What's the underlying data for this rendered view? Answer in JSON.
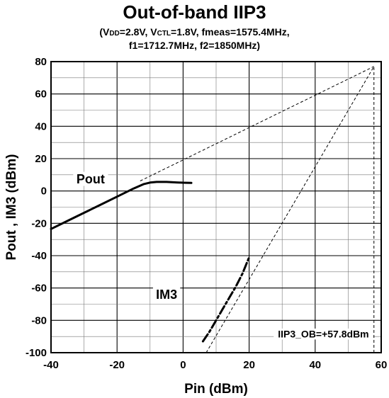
{
  "chart_data": {
    "type": "line",
    "title": "Out-of-band IIP3",
    "subtitle": {
      "line1_a": "(V",
      "line1_vdd_sub": "DD",
      "line1_b": "=2.8V, V",
      "line1_vctl_sub": "CTL",
      "line1_c": "=1.8V, fmeas=1575.4MHz,",
      "line2": "f1=1712.7MHz, f2=1850MHz)"
    },
    "xlabel": "Pin (dBm)",
    "ylabel": "Pout , IM3 (dBm)",
    "xlim": [
      -40,
      60
    ],
    "ylim": [
      -100,
      80
    ],
    "x_ticks": [
      -40,
      -20,
      0,
      20,
      40,
      60
    ],
    "y_ticks": [
      80,
      60,
      40,
      20,
      0,
      -20,
      -40,
      -60,
      -80,
      -100
    ],
    "grid": true,
    "series": [
      {
        "name": "Pout",
        "style": "solid",
        "points": [
          [
            -40,
            -23.5
          ],
          [
            -35,
            -18.5
          ],
          [
            -30,
            -13.5
          ],
          [
            -25,
            -8.5
          ],
          [
            -20,
            -3.5
          ],
          [
            -15,
            1.5
          ],
          [
            -12,
            4.2
          ],
          [
            -10,
            5.2
          ],
          [
            -8,
            5.6
          ],
          [
            -5,
            5.6
          ],
          [
            -2,
            5.3
          ],
          [
            0,
            5.1
          ],
          [
            2.5,
            5.0
          ]
        ]
      },
      {
        "name": "IM3",
        "style": "dash-dot",
        "points": [
          [
            6,
            -93
          ],
          [
            8,
            -87
          ],
          [
            10,
            -80
          ],
          [
            12,
            -73
          ],
          [
            14,
            -66
          ],
          [
            16,
            -59
          ],
          [
            18,
            -51
          ],
          [
            20,
            -41
          ]
        ]
      }
    ],
    "extrapolations": [
      {
        "points": [
          [
            -13,
            6.2
          ],
          [
            57.8,
            77
          ]
        ],
        "style": "dashed"
      },
      {
        "points": [
          [
            7,
            -100
          ],
          [
            57.8,
            77
          ]
        ],
        "style": "dashed"
      },
      {
        "points": [
          [
            57.8,
            -100
          ],
          [
            57.8,
            77
          ]
        ],
        "style": "dashed"
      }
    ],
    "annotations": [
      {
        "text": "Pout",
        "at": [
          -28,
          5.5
        ]
      },
      {
        "text": "IM3",
        "at": [
          -5,
          -66
        ]
      },
      {
        "text": "IIP3_OB=+57.8dBm",
        "at": [
          42.5,
          -90
        ]
      }
    ]
  }
}
